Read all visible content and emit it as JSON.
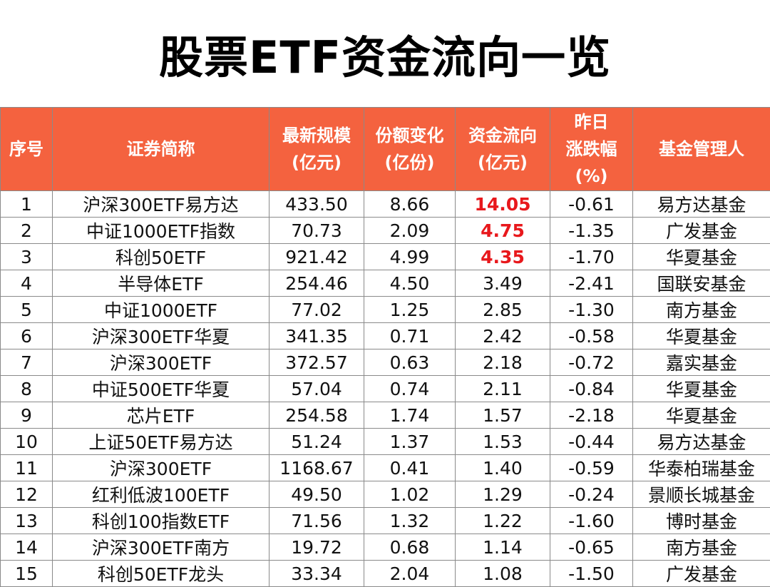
{
  "title": "股票ETF资金流向一览",
  "header": {
    "seq": "序号",
    "name": "证券简称",
    "scale_l1": "最新规模",
    "scale_l2": "(亿元)",
    "share_l1": "份额变化",
    "share_l2": "(亿份)",
    "flow_l1": "资金流向",
    "flow_l2": "(亿元)",
    "change_l1": "昨日",
    "change_l2": "涨跌幅",
    "change_l3": "(%)",
    "manager": "基金管理人"
  },
  "colors": {
    "header_bg": "#f4623f",
    "header_text": "#ffffff",
    "highlight_text": "#e8181c"
  },
  "rows": [
    {
      "seq": "1",
      "name": "沪深300ETF易方达",
      "scale": "433.50",
      "share": "8.66",
      "flow": "14.05",
      "change": "-0.61",
      "manager": "易方达基金",
      "highlight": true
    },
    {
      "seq": "2",
      "name": "中证1000ETF指数",
      "scale": "70.73",
      "share": "2.09",
      "flow": "4.75",
      "change": "-1.35",
      "manager": "广发基金",
      "highlight": true
    },
    {
      "seq": "3",
      "name": "科创50ETF",
      "scale": "921.42",
      "share": "4.99",
      "flow": "4.35",
      "change": "-1.70",
      "manager": "华夏基金",
      "highlight": true
    },
    {
      "seq": "4",
      "name": "半导体ETF",
      "scale": "254.46",
      "share": "4.50",
      "flow": "3.49",
      "change": "-2.41",
      "manager": "国联安基金",
      "highlight": false
    },
    {
      "seq": "5",
      "name": "中证1000ETF",
      "scale": "77.02",
      "share": "1.25",
      "flow": "2.85",
      "change": "-1.30",
      "manager": "南方基金",
      "highlight": false
    },
    {
      "seq": "6",
      "name": "沪深300ETF华夏",
      "scale": "341.35",
      "share": "0.71",
      "flow": "2.42",
      "change": "-0.58",
      "manager": "华夏基金",
      "highlight": false
    },
    {
      "seq": "7",
      "name": "沪深300ETF",
      "scale": "372.57",
      "share": "0.63",
      "flow": "2.18",
      "change": "-0.72",
      "manager": "嘉实基金",
      "highlight": false
    },
    {
      "seq": "8",
      "name": "中证500ETF华夏",
      "scale": "57.04",
      "share": "0.74",
      "flow": "2.11",
      "change": "-0.84",
      "manager": "华夏基金",
      "highlight": false
    },
    {
      "seq": "9",
      "name": "芯片ETF",
      "scale": "254.58",
      "share": "1.74",
      "flow": "1.57",
      "change": "-2.18",
      "manager": "华夏基金",
      "highlight": false
    },
    {
      "seq": "10",
      "name": "上证50ETF易方达",
      "scale": "51.24",
      "share": "1.37",
      "flow": "1.53",
      "change": "-0.44",
      "manager": "易方达基金",
      "highlight": false
    },
    {
      "seq": "11",
      "name": "沪深300ETF",
      "scale": "1168.67",
      "share": "0.41",
      "flow": "1.40",
      "change": "-0.59",
      "manager": "华泰柏瑞基金",
      "highlight": false
    },
    {
      "seq": "12",
      "name": "红利低波100ETF",
      "scale": "49.50",
      "share": "1.02",
      "flow": "1.29",
      "change": "-0.24",
      "manager": "景顺长城基金",
      "highlight": false
    },
    {
      "seq": "13",
      "name": "科创100指数ETF",
      "scale": "71.56",
      "share": "1.32",
      "flow": "1.22",
      "change": "-1.60",
      "manager": "博时基金",
      "highlight": false
    },
    {
      "seq": "14",
      "name": "沪深300ETF南方",
      "scale": "19.72",
      "share": "0.68",
      "flow": "1.14",
      "change": "-0.65",
      "manager": "南方基金",
      "highlight": false
    },
    {
      "seq": "15",
      "name": "科创50ETF龙头",
      "scale": "33.34",
      "share": "2.04",
      "flow": "1.08",
      "change": "-1.50",
      "manager": "广发基金",
      "highlight": false
    }
  ]
}
